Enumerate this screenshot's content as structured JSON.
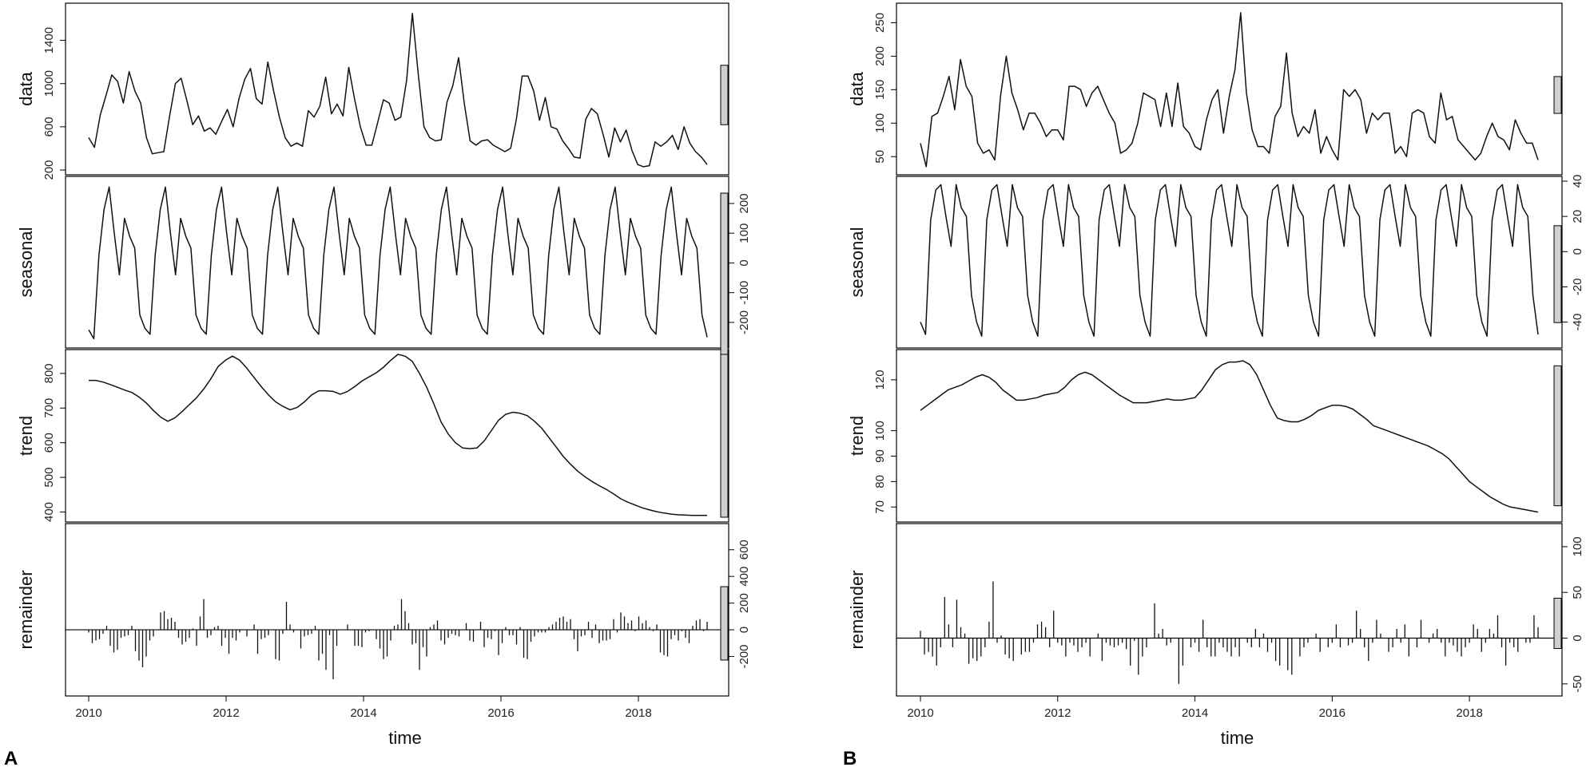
{
  "chart_data": [
    {
      "type": "line",
      "panel_label": "A",
      "xlabel": "time",
      "xticks": [
        2010,
        2012,
        2014,
        2016,
        2018
      ],
      "time": {
        "start": 2010.0,
        "frequency": 12
      },
      "panels": [
        {
          "name": "data",
          "ylim": [
            200,
            1700
          ],
          "yticks": [
            200,
            600,
            1000,
            1400
          ],
          "axis_side": "left",
          "style": "line",
          "values": [
            500,
            410,
            710,
            890,
            1080,
            1020,
            820,
            1110,
            930,
            820,
            500,
            350,
            360,
            370,
            700,
            1000,
            1050,
            840,
            620,
            700,
            560,
            590,
            530,
            650,
            760,
            600,
            860,
            1040,
            1140,
            860,
            810,
            1200,
            930,
            690,
            500,
            420,
            450,
            420,
            750,
            690,
            790,
            1060,
            720,
            810,
            700,
            1150,
            860,
            600,
            430,
            430,
            640,
            850,
            820,
            660,
            690,
            1030,
            1650,
            1100,
            600,
            500,
            470,
            480,
            830,
            980,
            1240,
            810,
            470,
            430,
            470,
            480,
            430,
            400,
            370,
            400,
            670,
            1070,
            1070,
            930,
            660,
            870,
            600,
            580,
            470,
            400,
            320,
            310,
            670,
            770,
            720,
            530,
            320,
            590,
            460,
            570,
            380,
            250,
            230,
            240,
            460,
            420,
            460,
            520,
            390,
            600,
            450,
            370,
            320,
            250
          ]
        },
        {
          "name": "seasonal",
          "ylim": [
            -270,
            275
          ],
          "yticks": [
            -200,
            -100,
            0,
            100,
            200
          ],
          "axis_side": "right",
          "style": "line",
          "values": [
            -225,
            -255,
            25,
            180,
            255,
            100,
            -40,
            150,
            90,
            50,
            -175,
            -220,
            -240,
            25,
            180,
            255,
            100,
            -40,
            150,
            90,
            50,
            -175,
            -220,
            -240,
            25,
            180,
            255,
            100,
            -40,
            150,
            90,
            50,
            -175,
            -220,
            -240,
            25,
            180,
            255,
            100,
            -40,
            150,
            90,
            50,
            -175,
            -220,
            -240,
            25,
            180,
            255,
            100,
            -40,
            150,
            90,
            50,
            -175,
            -220,
            -240,
            25,
            180,
            255,
            100,
            -40,
            150,
            90,
            50,
            -175,
            -220,
            -240,
            25,
            180,
            255,
            100,
            -40,
            150,
            90,
            50,
            -175,
            -220,
            -240,
            25,
            180,
            255,
            100,
            -40,
            150,
            90,
            50,
            -175,
            -220,
            -240,
            25,
            180,
            255,
            100,
            -40,
            150,
            90,
            50,
            -175,
            -220,
            -240,
            25,
            180,
            255,
            100,
            -40,
            150,
            90,
            50,
            -175,
            -220,
            -240,
            25,
            180,
            255,
            100,
            -40,
            150,
            90,
            50,
            -175,
            -250
          ]
        },
        {
          "name": "trend",
          "ylim": [
            385,
            855
          ],
          "yticks": [
            400,
            500,
            600,
            700,
            800
          ],
          "axis_side": "left",
          "style": "line",
          "values": [
            780,
            780,
            775,
            768,
            760,
            752,
            745,
            732,
            715,
            693,
            674,
            662,
            672,
            690,
            710,
            730,
            755,
            785,
            820,
            838,
            850,
            838,
            815,
            788,
            762,
            738,
            718,
            705,
            695,
            702,
            718,
            738,
            750,
            750,
            748,
            740,
            748,
            762,
            778,
            790,
            802,
            818,
            838,
            855,
            850,
            835,
            800,
            760,
            712,
            660,
            625,
            600,
            585,
            583,
            585,
            605,
            635,
            665,
            682,
            688,
            685,
            678,
            662,
            642,
            615,
            588,
            560,
            538,
            518,
            502,
            488,
            476,
            465,
            452,
            438,
            428,
            420,
            412,
            406,
            401,
            397,
            394,
            392,
            391,
            390,
            390,
            390
          ]
        },
        {
          "name": "remainder",
          "ylim": [
            -460,
            760
          ],
          "yticks": [
            -200,
            0,
            200,
            400,
            600
          ],
          "axis_side": "right",
          "style": "bars",
          "values": [
            -20,
            -100,
            -80,
            -70,
            -30,
            30,
            -120,
            -170,
            -150,
            -60,
            -50,
            -40,
            30,
            -160,
            -230,
            -280,
            -200,
            -80,
            -50,
            0,
            130,
            140,
            80,
            90,
            60,
            -60,
            -110,
            -90,
            -60,
            10,
            -120,
            100,
            230,
            -60,
            -40,
            20,
            30,
            -120,
            -60,
            -180,
            -60,
            -80,
            -20,
            0,
            -50,
            0,
            40,
            -180,
            -70,
            -60,
            -40,
            0,
            -220,
            -230,
            -30,
            210,
            40,
            -20,
            0,
            -140,
            -50,
            -40,
            -30,
            30,
            -230,
            -180,
            -300,
            -40,
            -370,
            -120,
            0,
            0,
            40,
            0,
            -120,
            -120,
            -130,
            -20,
            -10,
            0,
            -70,
            -140,
            -220,
            -200,
            -80,
            30,
            40,
            230,
            140,
            50,
            -110,
            -100,
            -300,
            -130,
            -200,
            20,
            40,
            70,
            -80,
            -110,
            -60,
            -30,
            -40,
            -50,
            0,
            50,
            -80,
            -90,
            0,
            60,
            -130,
            -60,
            -70,
            -10,
            -190,
            -100,
            20,
            -40,
            -40,
            -110,
            20,
            -210,
            -220,
            -90,
            -50,
            -20,
            -20,
            -20,
            20,
            40,
            60,
            90,
            100,
            60,
            80,
            -70,
            -160,
            -50,
            -40,
            60,
            -60,
            40,
            -100,
            -80,
            -80,
            -70,
            80,
            -20,
            130,
            100,
            50,
            70,
            -10,
            100,
            50,
            70,
            20,
            -10,
            40,
            -170,
            -190,
            -200,
            -70,
            -40,
            -80,
            -10,
            -60,
            -100,
            30,
            70,
            80,
            -10,
            60
          ]
        }
      ]
    },
    {
      "type": "line",
      "panel_label": "B",
      "xlabel": "time",
      "xticks": [
        2010,
        2012,
        2014,
        2016,
        2018
      ],
      "time": {
        "start": 2010.0,
        "frequency": 12
      },
      "panels": [
        {
          "name": "data",
          "ylim": [
            30,
            272
          ],
          "yticks": [
            50,
            100,
            150,
            200,
            250
          ],
          "axis_side": "left",
          "style": "line",
          "values": [
            70,
            35,
            110,
            115,
            140,
            170,
            120,
            195,
            155,
            140,
            70,
            55,
            60,
            45,
            140,
            200,
            145,
            120,
            90,
            115,
            115,
            100,
            80,
            90,
            90,
            75,
            155,
            155,
            150,
            125,
            145,
            155,
            135,
            115,
            100,
            55,
            60,
            70,
            100,
            145,
            140,
            135,
            95,
            145,
            95,
            160,
            95,
            85,
            65,
            60,
            105,
            135,
            150,
            85,
            140,
            180,
            265,
            145,
            90,
            65,
            65,
            55,
            110,
            125,
            205,
            115,
            80,
            95,
            85,
            120,
            55,
            80,
            60,
            45,
            150,
            140,
            150,
            135,
            85,
            115,
            105,
            115,
            115,
            55,
            65,
            50,
            115,
            120,
            115,
            80,
            70,
            145,
            105,
            110,
            75,
            65,
            55,
            45,
            55,
            80,
            100,
            80,
            75,
            60,
            105,
            85,
            70,
            70,
            45
          ]
        },
        {
          "name": "seasonal",
          "ylim": [
            -52,
            40
          ],
          "yticks": [
            -40,
            -20,
            0,
            20,
            40
          ],
          "axis_side": "right",
          "style": "line",
          "values": [
            -40,
            -47,
            18,
            35,
            38,
            20,
            3,
            38,
            25,
            20,
            -25,
            -40,
            -48,
            18,
            35,
            38,
            20,
            3,
            38,
            25,
            20,
            -25,
            -40,
            -48,
            18,
            35,
            38,
            20,
            3,
            38,
            25,
            20,
            -25,
            -40,
            -48,
            18,
            35,
            38,
            20,
            3,
            38,
            25,
            20,
            -25,
            -40,
            -48,
            18,
            35,
            38,
            20,
            3,
            38,
            25,
            20,
            -25,
            -40,
            -48,
            18,
            35,
            38,
            20,
            3,
            38,
            25,
            20,
            -25,
            -40,
            -48,
            18,
            35,
            38,
            20,
            3,
            38,
            25,
            20,
            -25,
            -40,
            -48,
            18,
            35,
            38,
            20,
            3,
            38,
            25,
            20,
            -25,
            -40,
            -48,
            18,
            35,
            38,
            20,
            3,
            38,
            25,
            20,
            -25,
            -40,
            -48,
            18,
            35,
            38,
            20,
            3,
            38,
            25,
            20,
            -25,
            -40,
            -48,
            18,
            35,
            38,
            20,
            3,
            38,
            25,
            20,
            -25,
            -47
          ]
        },
        {
          "name": "trend",
          "ylim": [
            66,
            130
          ],
          "yticks": [
            70,
            80,
            90,
            100,
            120
          ],
          "axis_side": "left",
          "style": "line",
          "values": [
            108,
            110,
            112,
            114,
            116,
            117,
            118,
            119.5,
            121,
            122,
            121,
            119,
            116,
            114,
            112,
            112,
            112.5,
            113,
            114,
            114.5,
            115,
            117,
            120,
            122,
            123,
            122,
            120,
            118,
            116,
            114,
            112.5,
            111,
            111,
            111,
            111.5,
            112,
            112.5,
            112,
            112,
            112.5,
            113,
            116,
            120,
            124,
            126,
            127,
            127,
            127.5,
            126,
            122,
            116,
            110,
            105,
            104,
            103.5,
            103.5,
            104.5,
            106,
            108,
            109,
            110,
            110,
            109.5,
            108.5,
            106.5,
            104.5,
            102,
            101,
            100,
            99,
            98,
            97,
            96,
            95,
            94,
            92.5,
            91,
            89,
            86,
            83,
            80,
            78,
            76,
            74,
            72.5,
            71,
            70,
            69.5,
            69,
            68.5,
            68
          ]
        },
        {
          "name": "remainder",
          "ylim": [
            -58,
            120
          ],
          "yticks": [
            -50,
            0,
            50,
            100
          ],
          "axis_side": "right",
          "style": "bars",
          "values": [
            8,
            -18,
            -15,
            -20,
            -30,
            -10,
            45,
            15,
            -10,
            42,
            12,
            5,
            -28,
            -22,
            -25,
            -20,
            -10,
            18,
            62,
            -5,
            3,
            -18,
            -22,
            -25,
            0,
            -18,
            -15,
            -15,
            -5,
            15,
            18,
            12,
            -10,
            30,
            -5,
            -8,
            -20,
            -5,
            -8,
            -15,
            -10,
            -5,
            -20,
            0,
            5,
            -25,
            -5,
            -8,
            -10,
            -8,
            -5,
            -12,
            -30,
            -3,
            -40,
            -20,
            -10,
            0,
            38,
            5,
            10,
            -8,
            -5,
            0,
            -50,
            -30,
            0,
            -10,
            -5,
            -15,
            20,
            -10,
            -20,
            -20,
            -5,
            -10,
            -15,
            -20,
            -10,
            -20,
            0,
            -5,
            -10,
            10,
            -10,
            5,
            -15,
            -5,
            -25,
            -30,
            0,
            -35,
            -40,
            0,
            -20,
            -10,
            -5,
            0,
            5,
            -15,
            0,
            -10,
            -5,
            15,
            -10,
            0,
            -8,
            -5,
            30,
            10,
            -10,
            -25,
            -5,
            20,
            5,
            0,
            -15,
            -10,
            10,
            -5,
            15,
            -20,
            0,
            -10,
            20,
            0,
            -5,
            5,
            10,
            -5,
            -20,
            -5,
            -8,
            -15,
            -20,
            -10,
            -5,
            15,
            10,
            -15,
            -5,
            10,
            5,
            25,
            -10,
            -30,
            -5,
            -10,
            -15,
            0,
            -5,
            -5,
            25,
            12
          ]
        }
      ]
    }
  ]
}
